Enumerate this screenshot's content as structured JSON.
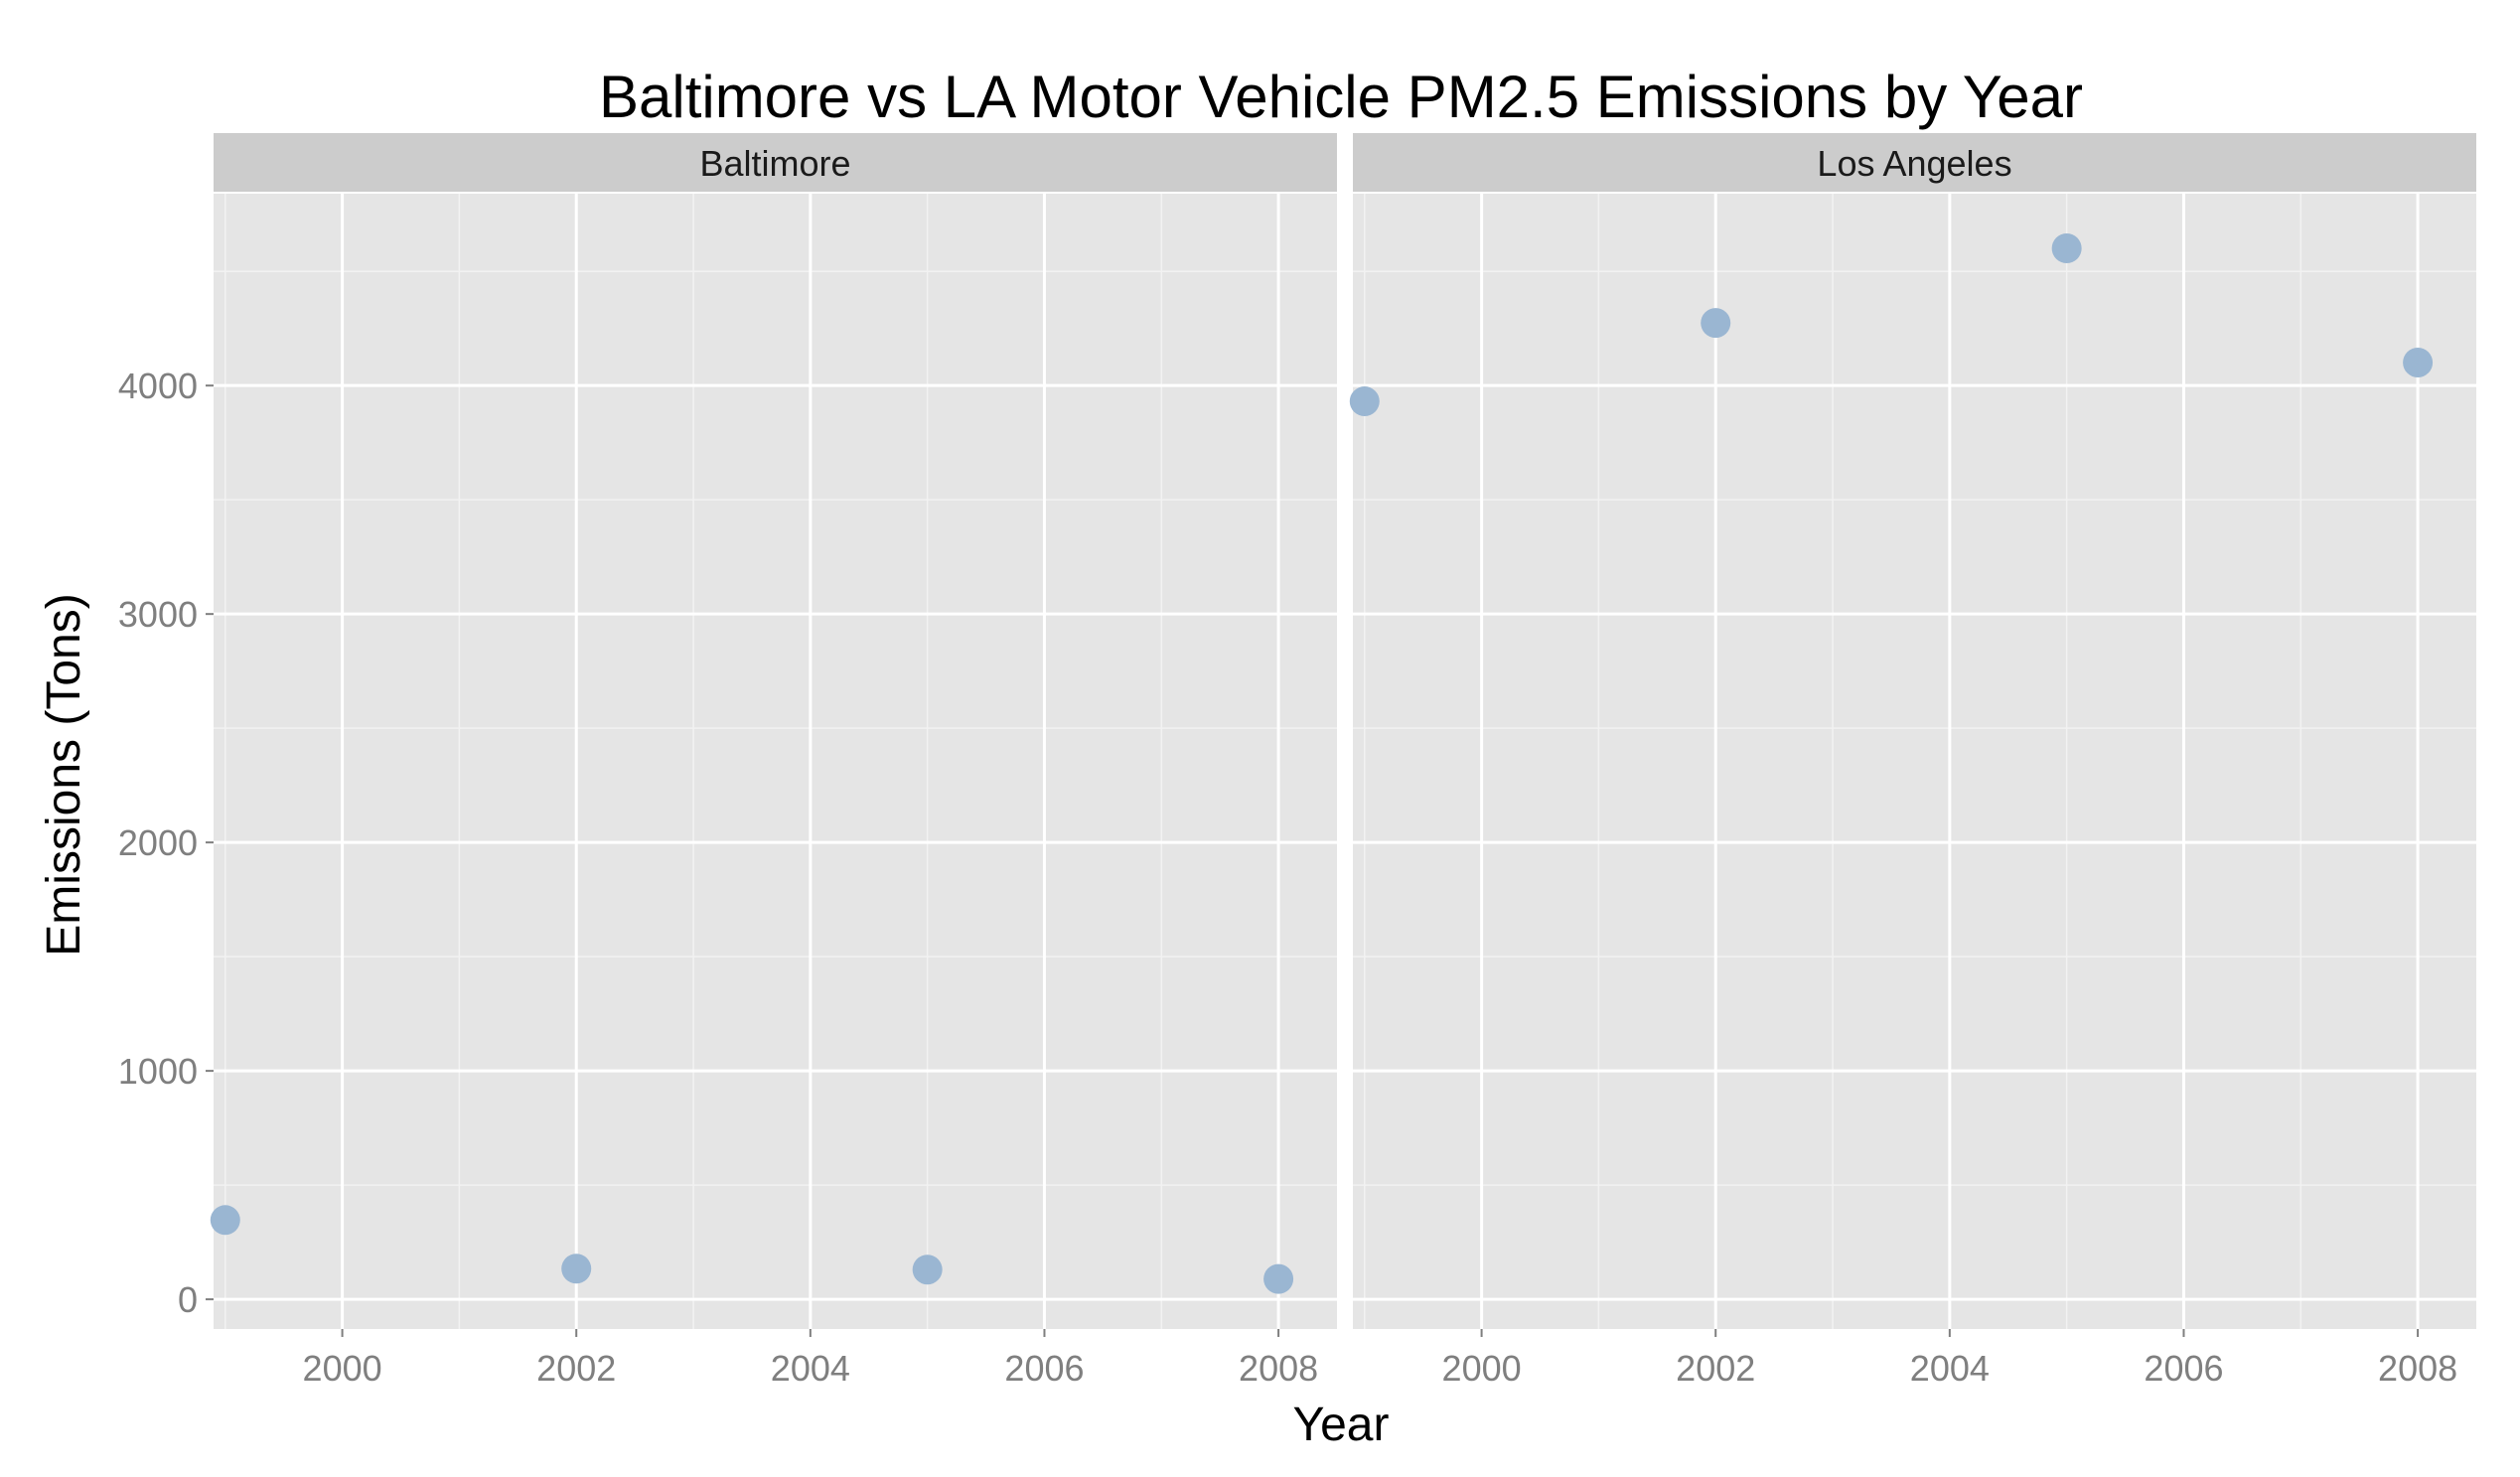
{
  "chart_data": {
    "type": "scatter",
    "title": "Baltimore vs LA Motor Vehicle PM2.5 Emissions by Year",
    "xlabel": "Year",
    "ylabel": "Emissions (Tons)",
    "xlim": [
      1998.9,
      2008.5
    ],
    "ylim": [
      -130,
      4840
    ],
    "x_ticks": [
      2000,
      2002,
      2004,
      2006,
      2008
    ],
    "y_ticks": [
      0,
      1000,
      2000,
      3000,
      4000
    ],
    "grid": true,
    "legend": "none",
    "point_color": "#9ab6d2",
    "panel_background": "#e5e5e5",
    "strip_background": "#cccccc",
    "facets": [
      {
        "label": "Baltimore",
        "points": [
          {
            "x": 1999,
            "y": 347
          },
          {
            "x": 2002,
            "y": 134
          },
          {
            "x": 2005,
            "y": 130
          },
          {
            "x": 2008,
            "y": 89
          }
        ]
      },
      {
        "label": "Los Angeles",
        "points": [
          {
            "x": 1999,
            "y": 3931
          },
          {
            "x": 2002,
            "y": 4274
          },
          {
            "x": 2005,
            "y": 4601
          },
          {
            "x": 2008,
            "y": 4101
          }
        ]
      }
    ]
  }
}
